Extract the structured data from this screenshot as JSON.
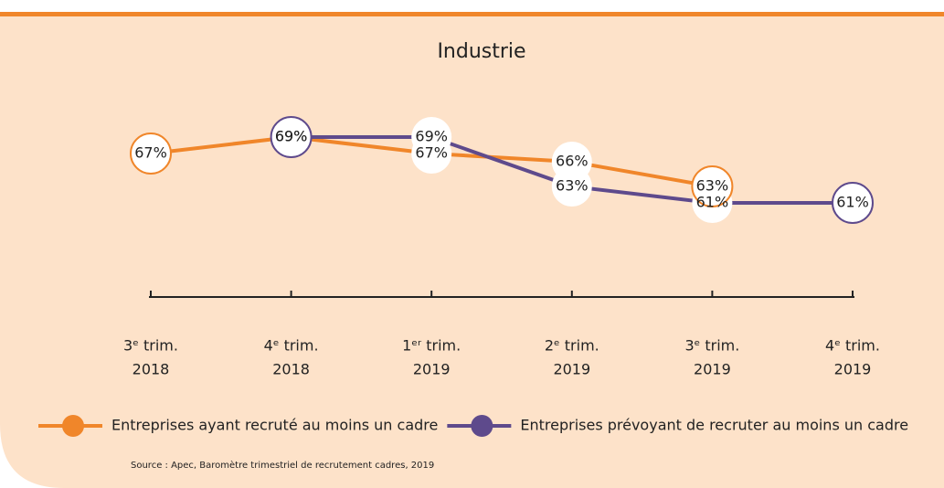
{
  "chart_data": {
    "type": "line",
    "title": "Industrie",
    "categories": [
      [
        "3ᵉ trim.",
        "2018"
      ],
      [
        "4ᵉ trim.",
        "2018"
      ],
      [
        "1ᵉʳ trim.",
        "2019"
      ],
      [
        "2ᵉ trim.",
        "2019"
      ],
      [
        "3ᵉ trim.",
        "2019"
      ],
      [
        "4ᵉ trim.",
        "2019"
      ]
    ],
    "series": [
      {
        "name": "Entreprises ayant recruté au moins un cadre",
        "color": "#f0862a",
        "values": [
          67,
          69,
          67,
          66,
          63,
          null
        ],
        "value_labels": [
          "67%",
          "69%",
          "67%",
          "66%",
          "63%",
          null
        ]
      },
      {
        "name": "Entreprises prévoyant de recruter au moins un cadre",
        "color": "#5e4a8c",
        "values": [
          null,
          69,
          69,
          63,
          61,
          61
        ],
        "value_labels": [
          null,
          "69%",
          "69%",
          "63%",
          "61%",
          "61%"
        ]
      }
    ],
    "ylim": [
      52,
      72
    ],
    "legend": "bottom",
    "source": "Source : Apec, Baromètre trimestriel de recrutement cadres, 2019"
  }
}
